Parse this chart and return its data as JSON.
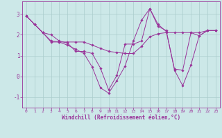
{
  "xlabel": "Windchill (Refroidissement éolien,°C)",
  "background_color": "#cce8e8",
  "line_color": "#993399",
  "grid_color": "#aacccc",
  "xlim": [
    -0.5,
    23.5
  ],
  "ylim": [
    -1.5,
    3.6
  ],
  "yticks": [
    -1,
    0,
    1,
    2,
    3
  ],
  "xticks": [
    0,
    1,
    2,
    3,
    4,
    5,
    6,
    7,
    8,
    9,
    10,
    11,
    12,
    13,
    14,
    15,
    16,
    17,
    18,
    19,
    20,
    21,
    22,
    23
  ],
  "series": [
    [
      2.9,
      2.5,
      2.1,
      2.0,
      1.7,
      1.6,
      1.2,
      1.2,
      1.1,
      0.4,
      -0.65,
      0.05,
      1.55,
      1.55,
      1.7,
      3.25,
      2.5,
      2.15,
      0.35,
      0.3,
      2.1,
      1.95,
      2.2,
      2.2
    ],
    [
      2.9,
      2.5,
      2.1,
      1.7,
      1.65,
      1.65,
      1.65,
      1.65,
      1.5,
      1.35,
      1.2,
      1.15,
      1.1,
      1.1,
      1.45,
      1.9,
      2.05,
      2.1,
      2.1,
      2.1,
      2.1,
      2.1,
      2.2,
      2.2
    ],
    [
      2.9,
      2.5,
      2.1,
      1.65,
      1.65,
      1.5,
      1.3,
      1.1,
      0.45,
      -0.55,
      -0.8,
      -0.2,
      0.5,
      1.7,
      2.7,
      3.25,
      2.4,
      2.2,
      0.3,
      -0.45,
      0.55,
      1.95,
      2.2,
      2.2
    ]
  ]
}
